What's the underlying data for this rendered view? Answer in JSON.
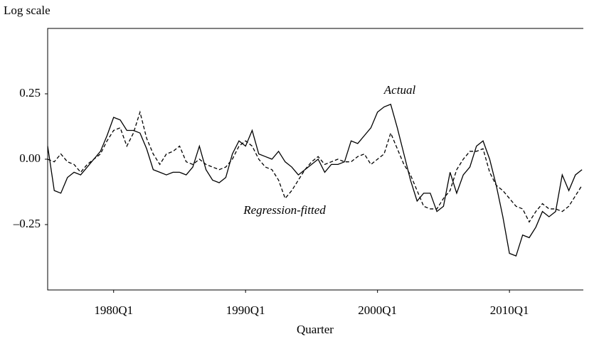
{
  "chart_data": {
    "type": "line",
    "y_axis_label": "Log scale",
    "x_axis_label": "Quarter",
    "xlim": [
      1975,
      2015.6
    ],
    "ylim": [
      -0.5,
      0.5
    ],
    "xticks": [
      {
        "value": 1980,
        "label": "1980Q1"
      },
      {
        "value": 1990,
        "label": "1990Q1"
      },
      {
        "value": 2000,
        "label": "2000Q1"
      },
      {
        "value": 2010,
        "label": "2010Q1"
      }
    ],
    "yticks": [
      {
        "value": -0.25,
        "label": "–0.25"
      },
      {
        "value": 0,
        "label": "0.00"
      },
      0.25
    ],
    "x": [
      1975,
      1975.5,
      1976,
      1976.5,
      1977,
      1977.5,
      1978,
      1978.5,
      1979,
      1979.5,
      1980,
      1980.5,
      1981,
      1981.5,
      1982,
      1982.5,
      1983,
      1983.5,
      1984,
      1984.5,
      1985,
      1985.5,
      1986,
      1986.5,
      1987,
      1987.5,
      1988,
      1988.5,
      1989,
      1989.5,
      1990,
      1990.5,
      1991,
      1991.5,
      1992,
      1992.5,
      1993,
      1993.5,
      1994,
      1994.5,
      1995,
      1995.5,
      1996,
      1996.5,
      1997,
      1997.5,
      1998,
      1998.5,
      1999,
      1999.5,
      2000,
      2000.5,
      2001,
      2001.5,
      2002,
      2002.5,
      2003,
      2003.5,
      2004,
      2004.5,
      2005,
      2005.5,
      2006,
      2006.5,
      2007,
      2007.5,
      2008,
      2008.5,
      2009,
      2009.5,
      2010,
      2010.5,
      2011,
      2011.5,
      2012,
      2012.5,
      2013,
      2013.5,
      2014,
      2014.5,
      2015,
      2015.5
    ],
    "series": [
      {
        "name": "Actual",
        "color": "#000000",
        "linestyle": "solid",
        "values": [
          0.05,
          -0.12,
          -0.13,
          -0.07,
          -0.05,
          -0.06,
          -0.03,
          0.0,
          0.03,
          0.09,
          0.16,
          0.15,
          0.11,
          0.11,
          0.1,
          0.04,
          -0.04,
          -0.05,
          -0.06,
          -0.05,
          -0.05,
          -0.06,
          -0.03,
          0.05,
          -0.04,
          -0.08,
          -0.09,
          -0.07,
          0.02,
          0.07,
          0.05,
          0.11,
          0.02,
          0.01,
          0.0,
          0.03,
          -0.01,
          -0.03,
          -0.06,
          -0.04,
          -0.02,
          0.0,
          -0.05,
          -0.02,
          -0.02,
          -0.01,
          0.07,
          0.06,
          0.09,
          0.12,
          0.18,
          0.2,
          0.21,
          0.12,
          0.02,
          -0.08,
          -0.16,
          -0.13,
          -0.13,
          -0.2,
          -0.18,
          -0.05,
          -0.13,
          -0.06,
          -0.03,
          0.05,
          0.07,
          0.0,
          -0.1,
          -0.22,
          -0.36,
          -0.37,
          -0.29,
          -0.3,
          -0.26,
          -0.2,
          -0.22,
          -0.2,
          -0.06,
          -0.12,
          -0.06,
          -0.04
        ]
      },
      {
        "name": "Regression-fitted",
        "color": "#000000",
        "linestyle": "dashed",
        "values": [
          0.0,
          -0.01,
          0.02,
          -0.01,
          -0.02,
          -0.05,
          -0.02,
          0.0,
          0.02,
          0.07,
          0.11,
          0.12,
          0.05,
          0.1,
          0.18,
          0.08,
          0.02,
          -0.02,
          0.02,
          0.03,
          0.05,
          -0.01,
          -0.02,
          0.0,
          -0.02,
          -0.03,
          -0.04,
          -0.03,
          0.0,
          0.05,
          0.07,
          0.05,
          0.0,
          -0.03,
          -0.04,
          -0.08,
          -0.15,
          -0.12,
          -0.08,
          -0.04,
          -0.01,
          0.01,
          -0.02,
          -0.01,
          0.0,
          -0.01,
          -0.01,
          0.01,
          0.02,
          -0.02,
          0.0,
          0.02,
          0.1,
          0.04,
          -0.02,
          -0.06,
          -0.12,
          -0.18,
          -0.19,
          -0.19,
          -0.15,
          -0.12,
          -0.04,
          0.0,
          0.03,
          0.03,
          0.04,
          -0.05,
          -0.1,
          -0.12,
          -0.15,
          -0.18,
          -0.19,
          -0.24,
          -0.2,
          -0.17,
          -0.19,
          -0.19,
          -0.2,
          -0.18,
          -0.14,
          -0.1
        ]
      }
    ]
  }
}
